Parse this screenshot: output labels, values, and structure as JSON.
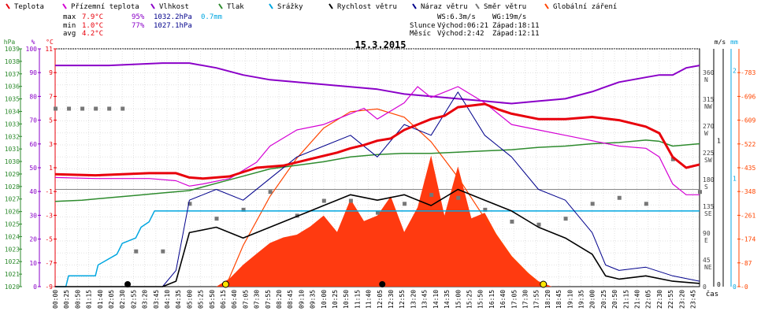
{
  "chart_data": {
    "type": "line",
    "title": "15.3.2015",
    "legend": [
      {
        "label": "Teplota",
        "color": "#e8000b"
      },
      {
        "label": "Přízemní teplota",
        "color": "#d400d4"
      },
      {
        "label": "Vlhkost",
        "color": "#8a00c8"
      },
      {
        "label": "Tlak",
        "color": "#2e8b2e"
      },
      {
        "label": "Srážky",
        "color": "#00a6e0"
      },
      {
        "label": "Rychlost větru",
        "color": "#000000"
      },
      {
        "label": "Náraz větru",
        "color": "#00008b"
      },
      {
        "label": "Směr větru",
        "color": "#777777"
      },
      {
        "label": "Globální záření",
        "color": "#ff4500"
      }
    ],
    "stats": {
      "max": {
        "label": "max",
        "temp": "7.9°C",
        "hum": "95%",
        "press": "1032.2hPa",
        "rain": "0.7mm"
      },
      "min": {
        "label": "min",
        "temp": "1.0°C",
        "hum": "77%",
        "press": "1027.1hPa"
      },
      "avg": {
        "label": "avg",
        "temp": "4.2°C"
      },
      "ws": "WS:6.3m/s",
      "wg": "WG:19m/s",
      "sun": {
        "label": "Slunce",
        "rise": "Východ:06:21",
        "set": "Západ:18:11"
      },
      "moon": {
        "label": "Měsíc",
        "rise": "Východ:2:42",
        "set": "Západ:12:11"
      }
    },
    "axes": {
      "hpa": {
        "unit": "hPa",
        "ticks": [
          "1039",
          "1038",
          "1037",
          "1036",
          "1035",
          "1034",
          "1033",
          "1032",
          "1031",
          "1030",
          "1029",
          "1028",
          "1027",
          "1026",
          "1025",
          "1024",
          "1023",
          "1022",
          "1021",
          "1020"
        ]
      },
      "pct": {
        "unit": "%",
        "ticks": [
          "100",
          "90",
          "80",
          "70",
          "60",
          "50",
          "40",
          "30",
          "20",
          "10",
          "0"
        ]
      },
      "celsius": {
        "unit": "°C",
        "ticks": [
          "11",
          "9",
          "7",
          "5",
          "3",
          "1",
          "-1",
          "-3",
          "-5",
          "-7",
          "-9"
        ]
      },
      "deg": {
        "ticks": [
          "360",
          "315",
          "270",
          "225",
          "180",
          "135",
          "90",
          "45",
          "0"
        ],
        "dirs": [
          "N",
          "NW",
          "W",
          "SW",
          "S",
          "SE",
          "E",
          "NE",
          ""
        ]
      },
      "ms": {
        "unit": "m/s",
        "ticks": [
          "0",
          "1"
        ]
      },
      "mm": {
        "unit": "mm",
        "ticks": [
          "2",
          "1",
          "0"
        ]
      },
      "rad": {
        "ticks": [
          "783",
          "696",
          "609",
          "522",
          "435",
          "348",
          "261",
          "174",
          "87",
          "0"
        ]
      },
      "time": {
        "ticks": [
          "00:00",
          "00:25",
          "00:50",
          "01:15",
          "01:40",
          "02:05",
          "02:30",
          "02:55",
          "03:20",
          "03:45",
          "04:10",
          "04:35",
          "05:00",
          "05:25",
          "05:50",
          "06:15",
          "06:40",
          "07:05",
          "07:30",
          "07:55",
          "08:20",
          "08:45",
          "09:10",
          "09:35",
          "10:00",
          "10:25",
          "10:50",
          "11:15",
          "11:40",
          "12:05",
          "12:30",
          "12:55",
          "13:20",
          "13:45",
          "14:10",
          "14:35",
          "15:00",
          "15:25",
          "15:50",
          "16:15",
          "16:40",
          "17:05",
          "17:30",
          "17:55",
          "18:20",
          "18:45",
          "19:10",
          "19:35",
          "20:00",
          "20:25",
          "20:50",
          "21:15",
          "21:40",
          "22:05",
          "22:30",
          "22:55",
          "23:20",
          "23:45"
        ],
        "unit": "čas"
      }
    },
    "ranges": {
      "temperature_c": [
        -9,
        13
      ],
      "humidity_pct": [
        0,
        100
      ],
      "pressure_hpa": [
        1020,
        1039.8
      ],
      "precip_mm": [
        0,
        2.2
      ],
      "wind_ms": [
        0,
        22
      ],
      "radiation_wm2": [
        0,
        870
      ],
      "direction_deg": [
        0,
        400
      ]
    },
    "series": [
      {
        "name": "Teplota",
        "color": "#e8000b",
        "x": [
          0,
          1.5,
          2.5,
          3.5,
          4.5,
          5,
          5.5,
          6.5,
          7.5,
          8.5,
          9.5,
          10.5,
          11,
          11.5,
          12,
          12.5,
          13,
          13.5,
          14,
          14.5,
          15,
          16,
          16.5,
          17,
          18,
          19,
          20,
          21,
          21.5,
          22,
          22.5,
          23,
          23.5,
          24
        ],
        "y": [
          1.4,
          1.3,
          1.4,
          1.5,
          1.5,
          1.1,
          1.0,
          1.2,
          2.0,
          2.2,
          2.8,
          3.4,
          3.8,
          4.1,
          4.5,
          4.7,
          5.5,
          6.0,
          6.5,
          6.8,
          7.6,
          7.9,
          7.4,
          7.0,
          6.5,
          6.5,
          6.7,
          6.4,
          6.1,
          5.8,
          5.2,
          3.0,
          2.0,
          2.3
        ]
      },
      {
        "name": "Přízemní teplota",
        "color": "#d400d4",
        "x": [
          0,
          1.5,
          2.5,
          3.5,
          4.5,
          5,
          5.5,
          6.5,
          7.5,
          8,
          9,
          10,
          11,
          11.5,
          12,
          13,
          13.5,
          14,
          14.5,
          15,
          16,
          17,
          18,
          19,
          20,
          21,
          22,
          22.5,
          23,
          23.5,
          24
        ],
        "y": [
          1.1,
          1.0,
          1.0,
          1.0,
          0.8,
          0.3,
          0.5,
          1.0,
          2.5,
          4.0,
          5.5,
          6.0,
          7.0,
          7.5,
          6.5,
          8.0,
          9.5,
          8.5,
          9.0,
          9.5,
          8.0,
          6.0,
          5.5,
          5.0,
          4.5,
          4.0,
          3.8,
          3.0,
          0.5,
          -0.5,
          -0.5
        ]
      },
      {
        "name": "Vlhkost",
        "color": "#8a00c8",
        "x": [
          0,
          2,
          4,
          4.5,
          5,
          6,
          7,
          8,
          9,
          10,
          11,
          12,
          13,
          14,
          15,
          16,
          17,
          18,
          19,
          20,
          21,
          22,
          22.5,
          23,
          23.5,
          24
        ],
        "y": [
          93,
          93,
          94,
          94,
          94,
          92,
          89,
          87,
          86,
          85,
          84,
          83,
          81,
          80,
          79,
          78,
          77,
          78,
          79,
          82,
          86,
          88,
          89,
          89,
          92,
          93
        ]
      },
      {
        "name": "Tlak",
        "color": "#2e8b2e",
        "x": [
          0,
          1,
          2,
          3,
          4,
          5,
          6,
          7,
          8,
          9,
          10,
          11,
          12,
          13,
          14,
          15,
          16,
          17,
          18,
          19,
          20,
          21,
          22,
          22.5,
          23,
          24
        ],
        "y": [
          1027.1,
          1027.2,
          1027.4,
          1027.6,
          1027.8,
          1028.0,
          1028.6,
          1029.2,
          1029.8,
          1030.1,
          1030.4,
          1030.8,
          1031.0,
          1031.1,
          1031.1,
          1031.2,
          1031.3,
          1031.4,
          1031.6,
          1031.7,
          1031.9,
          1032.0,
          1032.2,
          1032.1,
          1031.7,
          1031.9
        ]
      },
      {
        "name": "Srážky",
        "color": "#00a6e0",
        "x": [
          0,
          0.4,
          0.5,
          1.5,
          1.6,
          2.3,
          2.4,
          2.5,
          3.0,
          3.2,
          3.5,
          3.7,
          4.0,
          4.5,
          5,
          24
        ],
        "y": [
          0,
          0,
          0.1,
          0.1,
          0.2,
          0.3,
          0.35,
          0.4,
          0.45,
          0.55,
          0.6,
          0.7,
          0.7,
          0.7,
          0.7,
          0.7
        ]
      },
      {
        "name": "Rychlost větru",
        "color": "#000000",
        "x": [
          0,
          4,
          4.5,
          5,
          6,
          7,
          8,
          9,
          10,
          11,
          12,
          13,
          14,
          15,
          16,
          17,
          18,
          19,
          20,
          20.5,
          21,
          22,
          23,
          24
        ],
        "y": [
          0,
          0,
          0.5,
          5,
          5.5,
          4.5,
          5.5,
          6.5,
          7.5,
          8.5,
          8.0,
          8.5,
          7.5,
          9.0,
          8.0,
          7.0,
          5.5,
          4.5,
          3.0,
          1.0,
          0.7,
          1.0,
          0.5,
          0.3
        ]
      },
      {
        "name": "Náraz větru",
        "color": "#00008b",
        "x": [
          0,
          4,
          4.5,
          5,
          6,
          7,
          8,
          9,
          10,
          11,
          12,
          13,
          14,
          15,
          16,
          17,
          18,
          19,
          20,
          20.5,
          21,
          22,
          23,
          24
        ],
        "y": [
          0,
          0,
          1.5,
          8,
          9,
          8,
          10,
          12,
          13,
          14,
          12,
          15,
          14,
          18,
          14,
          12,
          9,
          8,
          5,
          2,
          1.5,
          1.8,
          1.0,
          0.5
        ]
      },
      {
        "name": "Směr větru",
        "color": "#777777",
        "x": [
          0,
          0.5,
          1,
          1.5,
          2,
          2.5,
          3,
          4,
          5,
          6,
          7,
          8,
          9,
          10,
          11,
          12,
          13,
          14,
          15,
          16,
          17,
          18,
          19,
          20,
          21,
          22,
          23,
          24
        ],
        "y": [
          300,
          300,
          300,
          300,
          300,
          300,
          60,
          60,
          140,
          115,
          130,
          160,
          120,
          145,
          145,
          125,
          140,
          155,
          150,
          130,
          110,
          105,
          115,
          140,
          150,
          140,
          215,
          160
        ]
      },
      {
        "name": "Globální záření",
        "color": "#ff4500",
        "x": [
          0,
          6,
          6.5,
          7,
          7.5,
          8,
          8.5,
          9,
          9.5,
          10,
          10.5,
          11,
          11.5,
          12,
          12.5,
          13,
          13.5,
          14,
          14.5,
          15,
          15.5,
          16,
          16.5,
          17,
          17.5,
          18,
          18.5,
          24
        ],
        "y": [
          0,
          0,
          30,
          80,
          120,
          160,
          180,
          190,
          220,
          260,
          200,
          320,
          240,
          260,
          330,
          200,
          290,
          480,
          260,
          440,
          250,
          270,
          180,
          110,
          60,
          20,
          0,
          0
        ]
      },
      {
        "name": "clear-sky radiation",
        "color": "#ff4500",
        "x": [
          6.35,
          7,
          8,
          9,
          10,
          11,
          12,
          13,
          14,
          15,
          16,
          17,
          18,
          18.2
        ],
        "y": [
          0,
          150,
          330,
          470,
          580,
          640,
          650,
          620,
          530,
          400,
          250,
          110,
          10,
          0
        ]
      }
    ],
    "markers": {
      "sunrise": "06:21",
      "sunset": "18:11",
      "moonrise": "02:42",
      "moonset": "12:11"
    }
  }
}
